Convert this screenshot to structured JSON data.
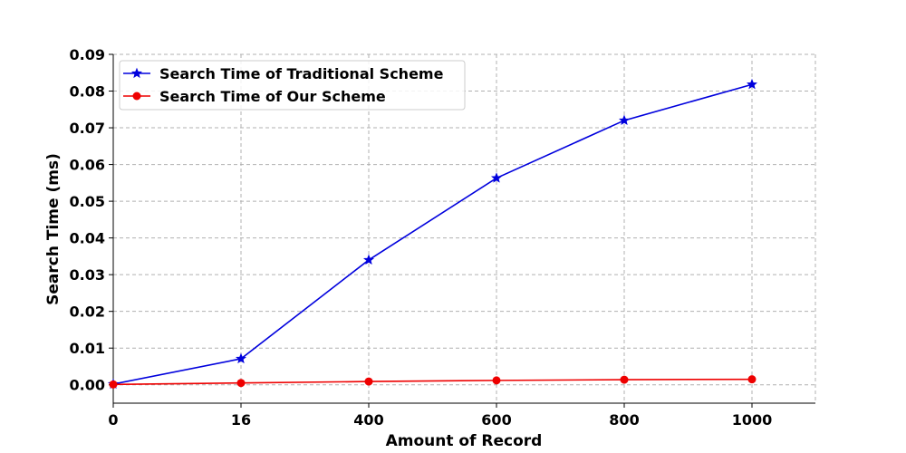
{
  "chart_data": {
    "type": "line",
    "title": "",
    "xlabel": "Amount of Record",
    "ylabel": "Search Time (ms)",
    "categories": [
      "0",
      "16",
      "400",
      "600",
      "800",
      "1000"
    ],
    "ylim": [
      -0.005,
      0.09
    ],
    "yticks": [
      "0.00",
      "0.01",
      "0.02",
      "0.03",
      "0.04",
      "0.05",
      "0.06",
      "0.07",
      "0.08",
      "0.09"
    ],
    "grid": true,
    "legend_position": "top-left",
    "series": [
      {
        "name": "Search Time of Traditional Scheme",
        "color": "#0000dd",
        "marker": "star",
        "values": [
          0.0002,
          0.0071,
          0.034,
          0.0563,
          0.072,
          0.0818
        ]
      },
      {
        "name": "Search Time of Our Scheme",
        "color": "#ee0000",
        "marker": "circle",
        "values": [
          0.0001,
          0.0005,
          0.0009,
          0.0012,
          0.0014,
          0.0015
        ]
      }
    ]
  }
}
